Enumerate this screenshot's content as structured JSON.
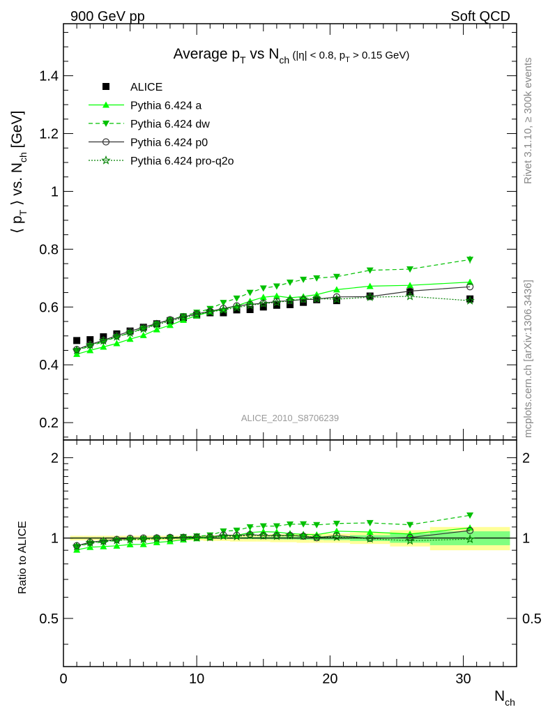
{
  "header": {
    "energy_label": "900 GeV pp",
    "process_label": "Soft QCD"
  },
  "side_labels": {
    "rivet": "Rivet 3.1.10, ≥ 300k events",
    "source": "mcplots.cern.ch [arXiv:1306.3436]"
  },
  "colors": {
    "alice": "#000000",
    "pythia_a": "#00ff00",
    "pythia_dw": "#00c000",
    "pythia_p0": "#333333",
    "pythia_proq2o": "#008000",
    "band_outer": "#ffff99",
    "band_inner": "#80ff80",
    "watermark": "#999999"
  },
  "chart_data": {
    "type": "scatter",
    "title": "Average p_T vs N_ch (|η| < 0.8, p_T > 0.15 GeV)",
    "title_parts": {
      "main_a": "Average p",
      "sub_T": "T",
      "main_b": " vs N",
      "sub_ch": "ch",
      "cuts_a": " (|η| < 0.8, p",
      "cuts_sub": "T",
      "cuts_b": " > 0.15 GeV)"
    },
    "analysis_id": "ALICE_2010_S8706239",
    "xlabel": {
      "main": "N",
      "sub": "ch"
    },
    "ylabel": {
      "a": "⟨ p",
      "sub_T": "T",
      "b": " ⟩ vs. N",
      "sub_ch": "ch",
      "c": " [GeV]"
    },
    "ratio_ylabel": "Ratio to ALICE",
    "xlim": [
      0,
      34
    ],
    "ylim": [
      0.14,
      1.58
    ],
    "ratio_ylim": [
      0.33,
      2.33
    ],
    "ratio_log_scale": true,
    "x_ticks": [
      0,
      10,
      20,
      30
    ],
    "y_ticks": [
      0.2,
      0.4,
      0.6,
      0.8,
      1,
      1.2,
      1.4
    ],
    "y_tick_labels": [
      "0.2",
      "0.4",
      "0.6",
      "0.8",
      "1",
      "1.2",
      "1.4"
    ],
    "ratio_ticks": [
      0.5,
      1,
      2
    ],
    "ratio_tick_labels": [
      "0.5",
      "1",
      "2"
    ],
    "legend_position": "top-left",
    "data": {
      "name": "ALICE",
      "x": [
        1,
        2,
        3,
        4,
        5,
        6,
        7,
        8,
        9,
        10,
        11,
        12,
        13,
        14,
        15,
        16,
        17,
        18,
        19,
        20.5,
        23,
        26,
        30.5
      ],
      "y": [
        0.484,
        0.487,
        0.497,
        0.507,
        0.517,
        0.53,
        0.542,
        0.553,
        0.563,
        0.572,
        0.58,
        0.58,
        0.59,
        0.591,
        0.6,
        0.606,
        0.608,
        0.616,
        0.625,
        0.622,
        0.638,
        0.652,
        0.628
      ],
      "band_edges": [
        0.5,
        1.5,
        2.5,
        3.5,
        4.5,
        5.5,
        6.5,
        7.5,
        8.5,
        9.5,
        10.5,
        11.5,
        12.5,
        13.5,
        14.5,
        15.5,
        16.5,
        17.5,
        18.5,
        19.5,
        21.5,
        24.5,
        27.5,
        33.5
      ],
      "stat_rel": [
        0.005,
        0.005,
        0.005,
        0.005,
        0.005,
        0.005,
        0.005,
        0.005,
        0.005,
        0.005,
        0.006,
        0.007,
        0.008,
        0.009,
        0.01,
        0.011,
        0.012,
        0.014,
        0.015,
        0.017,
        0.025,
        0.04,
        0.06
      ],
      "syst_rel": [
        0.02,
        0.02,
        0.02,
        0.02,
        0.02,
        0.02,
        0.02,
        0.02,
        0.02,
        0.02,
        0.025,
        0.025,
        0.03,
        0.03,
        0.03,
        0.035,
        0.035,
        0.04,
        0.04,
        0.04,
        0.05,
        0.07,
        0.1
      ]
    },
    "series": [
      {
        "name": "Pythia 6.424 a",
        "key": "pythia_a",
        "marker": "triangle-up",
        "dash": "",
        "x": [
          1,
          2,
          3,
          4,
          5,
          6,
          7,
          8,
          9,
          10,
          11,
          12,
          13,
          14,
          15,
          16,
          17,
          18,
          19,
          20.5,
          23,
          26,
          30.5
        ],
        "y": [
          0.437,
          0.45,
          0.462,
          0.474,
          0.489,
          0.502,
          0.522,
          0.537,
          0.555,
          0.57,
          0.583,
          0.592,
          0.604,
          0.62,
          0.634,
          0.638,
          0.632,
          0.636,
          0.643,
          0.66,
          0.672,
          0.675,
          0.686
        ]
      },
      {
        "name": "Pythia 6.424 dw",
        "key": "pythia_dw",
        "marker": "triangle-down",
        "dash": "6,4",
        "x": [
          1,
          2,
          3,
          4,
          5,
          6,
          7,
          8,
          9,
          10,
          11,
          12,
          13,
          14,
          15,
          16,
          17,
          18,
          19,
          20.5,
          23,
          26,
          30.5
        ],
        "y": [
          0.449,
          0.465,
          0.48,
          0.496,
          0.511,
          0.526,
          0.541,
          0.555,
          0.569,
          0.581,
          0.594,
          0.615,
          0.63,
          0.65,
          0.665,
          0.672,
          0.685,
          0.695,
          0.7,
          0.705,
          0.727,
          0.731,
          0.764
        ]
      },
      {
        "name": "Pythia 6.424 p0",
        "key": "pythia_p0",
        "marker": "circle-open",
        "dash": "",
        "x": [
          1,
          2,
          3,
          4,
          5,
          6,
          7,
          8,
          9,
          10,
          11,
          12,
          13,
          14,
          15,
          16,
          17,
          18,
          19,
          20.5,
          23,
          26,
          30.5
        ],
        "y": [
          0.453,
          0.47,
          0.485,
          0.501,
          0.516,
          0.53,
          0.543,
          0.556,
          0.566,
          0.576,
          0.585,
          0.595,
          0.604,
          0.609,
          0.613,
          0.619,
          0.622,
          0.626,
          0.627,
          0.635,
          0.636,
          0.655,
          0.67
        ]
      },
      {
        "name": "Pythia 6.424 pro-q2o",
        "key": "pythia_proq2o",
        "marker": "star-open",
        "dash": "2,2",
        "x": [
          1,
          2,
          3,
          4,
          5,
          6,
          7,
          8,
          9,
          10,
          11,
          12,
          13,
          14,
          15,
          16,
          17,
          18,
          19,
          20.5,
          23,
          26,
          30.5
        ],
        "y": [
          0.45,
          0.468,
          0.483,
          0.497,
          0.51,
          0.524,
          0.539,
          0.551,
          0.563,
          0.574,
          0.583,
          0.59,
          0.598,
          0.606,
          0.612,
          0.616,
          0.622,
          0.627,
          0.629,
          0.627,
          0.634,
          0.637,
          0.622
        ]
      }
    ]
  }
}
